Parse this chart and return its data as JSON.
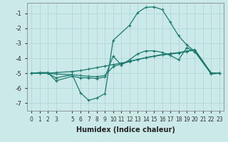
{
  "bg_color": "#cce9e9",
  "grid_color": "#aad4d4",
  "line_color": "#1a7a6e",
  "xlabel": "Humidex (Indice chaleur)",
  "ylim": [
    -7.5,
    -0.3
  ],
  "xlim": [
    -0.5,
    23.5
  ],
  "yticks": [
    -7,
    -6,
    -5,
    -4,
    -3,
    -2,
    -1
  ],
  "xticks": [
    0,
    1,
    2,
    3,
    5,
    6,
    7,
    8,
    9,
    10,
    11,
    12,
    13,
    14,
    15,
    16,
    17,
    18,
    19,
    20,
    21,
    22,
    23
  ],
  "figsize": [
    3.2,
    2.0
  ],
  "dpi": 100,
  "s1_x": [
    0,
    1,
    2,
    3,
    5,
    6,
    7,
    8,
    9,
    10,
    12,
    13,
    14,
    15,
    16,
    17,
    18,
    19,
    20,
    22,
    23
  ],
  "s1_y": [
    -5.0,
    -5.0,
    -5.0,
    -5.3,
    -5.1,
    -6.3,
    -6.8,
    -6.65,
    -6.35,
    -2.8,
    -1.8,
    -0.95,
    -0.6,
    -0.57,
    -0.75,
    -1.6,
    -2.5,
    -3.1,
    -3.55,
    -5.05,
    -5.0
  ],
  "s2_x": [
    0,
    1,
    2,
    3,
    5,
    6,
    7,
    8,
    9,
    10,
    11,
    12,
    13,
    14,
    15,
    16,
    17,
    18,
    19,
    20,
    22,
    23
  ],
  "s2_y": [
    -5.0,
    -4.95,
    -4.95,
    -5.5,
    -5.2,
    -5.3,
    -5.3,
    -5.35,
    -5.25,
    -3.85,
    -4.45,
    -4.1,
    -3.7,
    -3.5,
    -3.5,
    -3.6,
    -3.8,
    -4.1,
    -3.3,
    -3.55,
    -5.0,
    -5.0
  ],
  "s3_x": [
    0,
    1,
    2,
    3,
    5,
    6,
    7,
    8,
    9,
    10,
    11,
    12,
    13,
    14,
    15,
    16,
    17,
    18,
    19,
    20,
    22,
    23
  ],
  "s3_y": [
    -5.0,
    -5.0,
    -5.0,
    -5.05,
    -5.1,
    -5.15,
    -5.2,
    -5.22,
    -5.15,
    -4.55,
    -4.38,
    -4.22,
    -4.08,
    -3.95,
    -3.85,
    -3.75,
    -3.68,
    -3.62,
    -3.52,
    -3.42,
    -5.0,
    -5.0
  ],
  "s4_x": [
    0,
    1,
    2,
    3,
    5,
    6,
    7,
    8,
    9,
    10,
    11,
    12,
    13,
    14,
    15,
    16,
    17,
    18,
    19,
    20,
    22,
    23
  ],
  "s4_y": [
    -5.0,
    -5.0,
    -5.0,
    -4.95,
    -4.88,
    -4.82,
    -4.72,
    -4.62,
    -4.52,
    -4.42,
    -4.32,
    -4.2,
    -4.08,
    -3.97,
    -3.87,
    -3.78,
    -3.72,
    -3.65,
    -3.55,
    -3.45,
    -4.97,
    -5.0
  ]
}
